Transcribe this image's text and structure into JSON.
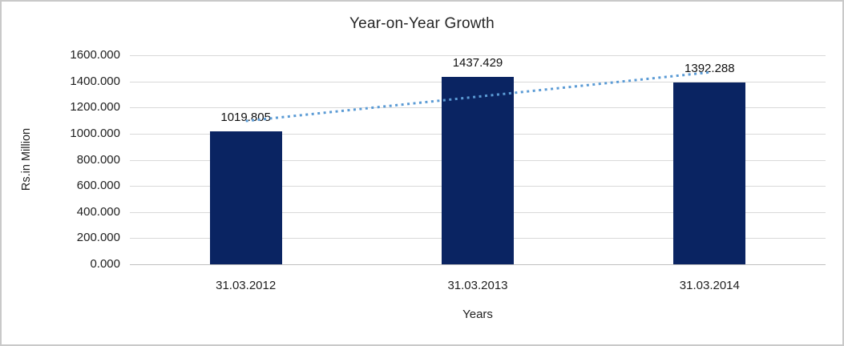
{
  "chart_data": {
    "type": "bar",
    "title": "Year-on-Year Growth",
    "xlabel": "Years",
    "ylabel": "Rs.in Million",
    "categories": [
      "31.03.2012",
      "31.03.2013",
      "31.03.2014"
    ],
    "values": [
      1019.805,
      1437.429,
      1392.288
    ],
    "value_labels": [
      "1019.805",
      "1437.429",
      "1392.288"
    ],
    "ylim": [
      0,
      1600
    ],
    "ytick_step": 200,
    "ytick_labels": [
      "0.000",
      "200.000",
      "400.000",
      "600.000",
      "800.000",
      "1000.000",
      "1200.000",
      "1400.000",
      "1600.000"
    ],
    "grid": true,
    "legend_position": "none",
    "bar_color": "#0a2462",
    "gridline_color": "#d9d9d9",
    "axis_line_color": "#c0c0c0",
    "trendline": {
      "type": "linear",
      "style": "dotted",
      "color": "#5b9bd5"
    }
  }
}
